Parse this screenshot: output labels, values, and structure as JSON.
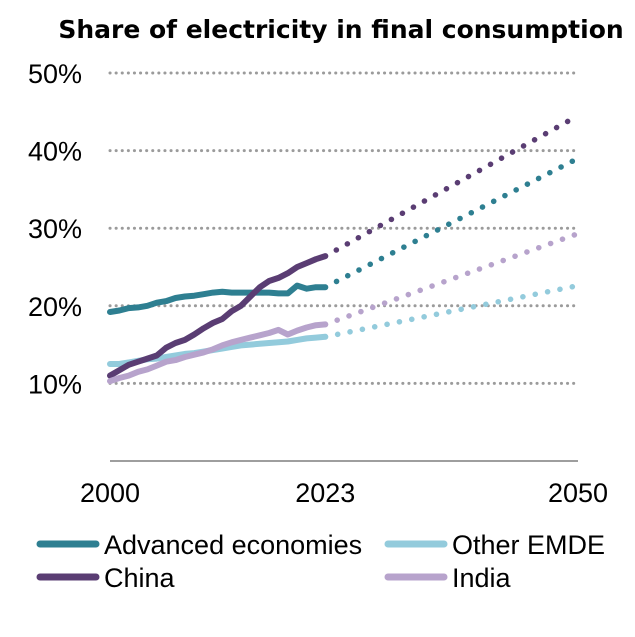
{
  "chart_data": {
    "type": "line",
    "title": "Share of electricity in final consumption",
    "xlabel": "",
    "ylabel": "",
    "x_ticks": [
      "2000",
      "2023",
      "2050"
    ],
    "y_ticks": [
      "10%",
      "20%",
      "30%",
      "40%",
      "50%"
    ],
    "y_tick_values": [
      10,
      20,
      30,
      40,
      50
    ],
    "xlim": [
      2000,
      2050
    ],
    "ylim": [
      0,
      50
    ],
    "grid": "horizontal dotted",
    "legend_position": "bottom",
    "historical_end_year": 2023,
    "series": [
      {
        "name": "Advanced economies",
        "color": "#2e7f91",
        "historical": {
          "x": [
            2000,
            2001,
            2002,
            2003,
            2004,
            2005,
            2006,
            2007,
            2008,
            2009,
            2010,
            2011,
            2012,
            2013,
            2014,
            2015,
            2016,
            2017,
            2018,
            2019,
            2020,
            2021,
            2022,
            2023
          ],
          "y": [
            19.2,
            19.4,
            19.7,
            19.8,
            20.0,
            20.4,
            20.6,
            21.0,
            21.2,
            21.3,
            21.5,
            21.7,
            21.8,
            21.7,
            21.7,
            21.7,
            21.7,
            21.7,
            21.6,
            21.6,
            22.6,
            22.2,
            22.4,
            22.4
          ]
        },
        "projection": {
          "x": [
            2023,
            2050
          ],
          "y": [
            22.4,
            39.0
          ]
        }
      },
      {
        "name": "Other EMDE",
        "color": "#93cbdc",
        "historical": {
          "x": [
            2000,
            2001,
            2002,
            2003,
            2004,
            2005,
            2006,
            2007,
            2008,
            2009,
            2010,
            2011,
            2012,
            2013,
            2014,
            2015,
            2016,
            2017,
            2018,
            2019,
            2020,
            2021,
            2022,
            2023
          ],
          "y": [
            12.5,
            12.5,
            12.7,
            12.9,
            13.1,
            13.2,
            13.4,
            13.6,
            13.8,
            13.9,
            14.1,
            14.3,
            14.5,
            14.7,
            14.9,
            15.0,
            15.1,
            15.2,
            15.3,
            15.4,
            15.6,
            15.8,
            15.9,
            16.0
          ]
        },
        "projection": {
          "x": [
            2023,
            2050
          ],
          "y": [
            16.0,
            22.6
          ]
        }
      },
      {
        "name": "China",
        "color": "#5a3d73",
        "historical": {
          "x": [
            2000,
            2001,
            2002,
            2003,
            2004,
            2005,
            2006,
            2007,
            2008,
            2009,
            2010,
            2011,
            2012,
            2013,
            2014,
            2015,
            2016,
            2017,
            2018,
            2019,
            2020,
            2021,
            2022,
            2023
          ],
          "y": [
            11.0,
            11.7,
            12.4,
            12.8,
            13.2,
            13.6,
            14.6,
            15.2,
            15.6,
            16.3,
            17.1,
            17.8,
            18.3,
            19.3,
            20.0,
            21.2,
            22.4,
            23.2,
            23.6,
            24.2,
            25.0,
            25.5,
            26.0,
            26.4
          ]
        },
        "projection": {
          "x": [
            2023,
            2050
          ],
          "y": [
            26.4,
            44.5
          ]
        }
      },
      {
        "name": "India",
        "color": "#b7a3cc",
        "historical": {
          "x": [
            2000,
            2001,
            2002,
            2003,
            2004,
            2005,
            2006,
            2007,
            2008,
            2009,
            2010,
            2011,
            2012,
            2013,
            2014,
            2015,
            2016,
            2017,
            2018,
            2019,
            2020,
            2021,
            2022,
            2023
          ],
          "y": [
            10.3,
            10.7,
            11.0,
            11.5,
            11.8,
            12.3,
            12.8,
            13.0,
            13.4,
            13.7,
            14.0,
            14.4,
            14.9,
            15.3,
            15.6,
            15.9,
            16.2,
            16.5,
            16.9,
            16.3,
            16.8,
            17.2,
            17.5,
            17.6
          ]
        },
        "projection": {
          "x": [
            2023,
            2050
          ],
          "y": [
            17.6,
            29.3
          ]
        }
      }
    ]
  }
}
